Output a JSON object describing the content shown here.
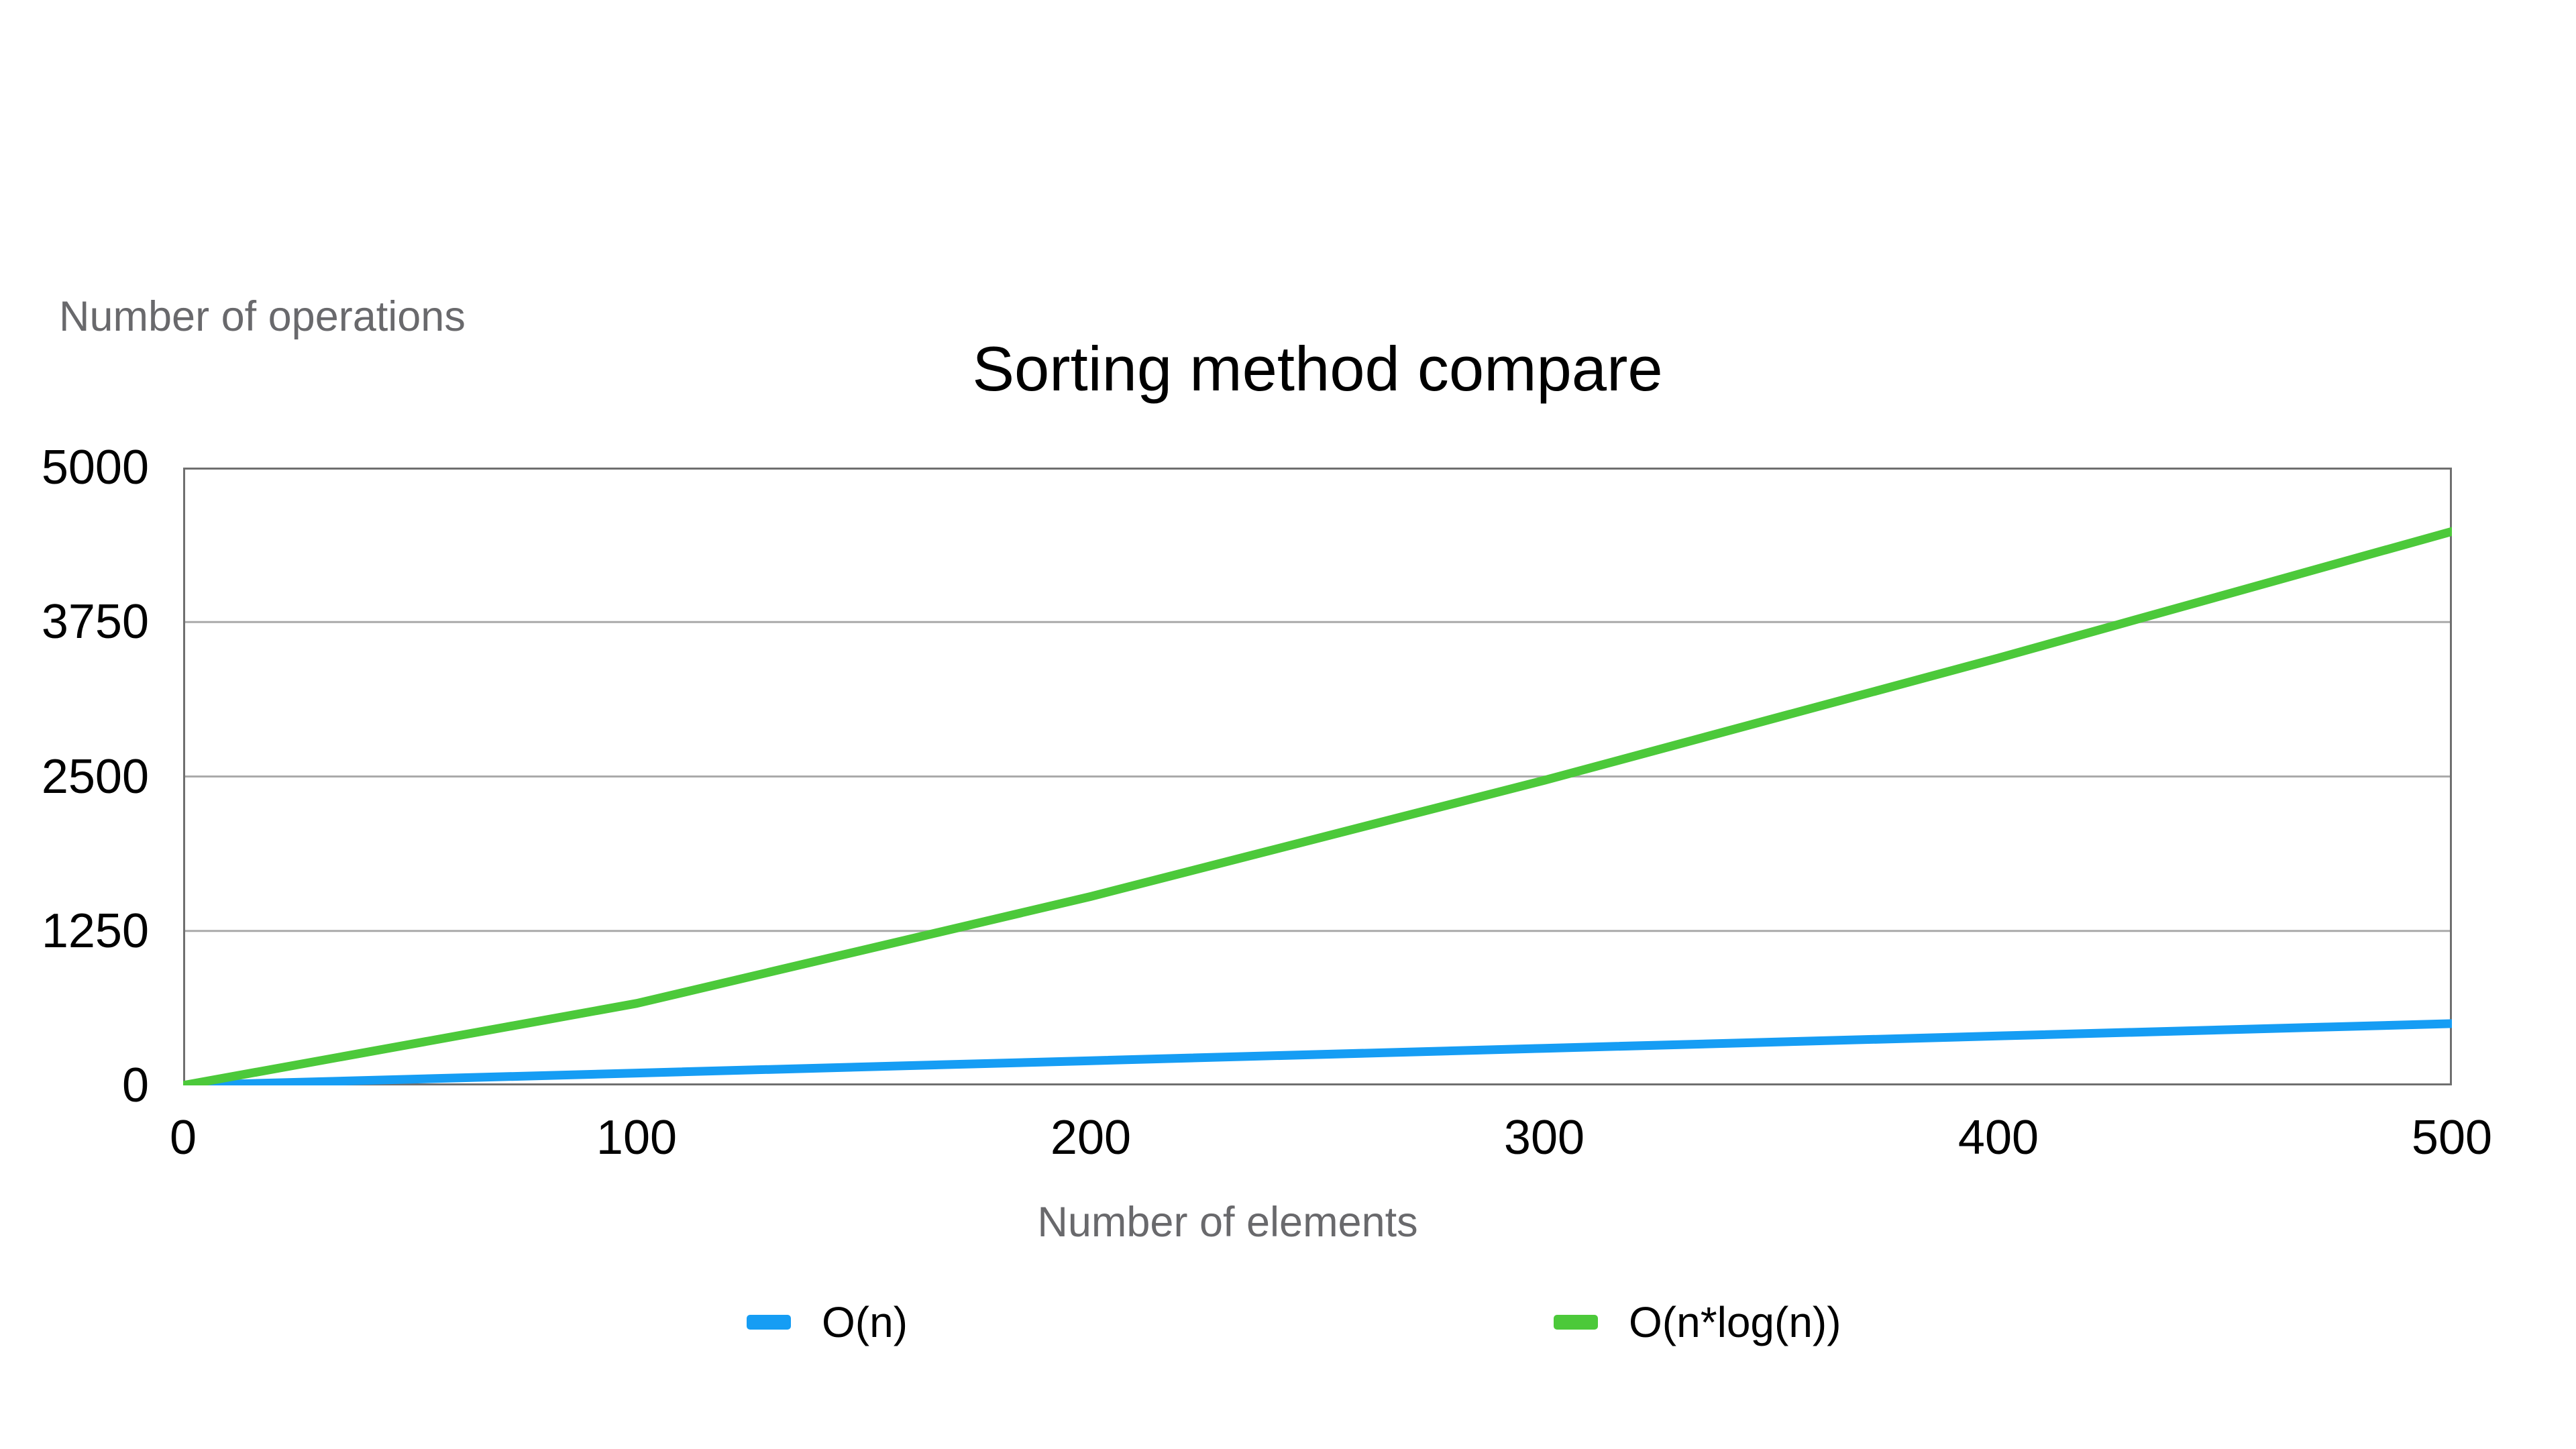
{
  "chart_data": {
    "type": "line",
    "title": "Sorting method compare",
    "xlabel": "Number of elements",
    "ylabel": "Number of operations",
    "xlim": [
      0,
      500
    ],
    "ylim": [
      0,
      5000
    ],
    "xticks": [
      0,
      100,
      200,
      300,
      400,
      500
    ],
    "yticks": [
      0,
      1250,
      2500,
      3750,
      5000
    ],
    "grid": "horizontal-only",
    "legend_position": "bottom",
    "x": [
      0,
      100,
      200,
      300,
      400,
      500
    ],
    "series": [
      {
        "name": "O(n)",
        "color": "#169df4",
        "values": [
          0,
          100,
          200,
          300,
          400,
          500
        ]
      },
      {
        "name": "O(n*log(n))",
        "color": "#4cc93a",
        "values": [
          0,
          664,
          1529,
          2469,
          3458,
          4483
        ]
      }
    ],
    "colors": {
      "gridline": "#aaaaaa",
      "plot_border": "#6f6f6f",
      "title_text": "#000000",
      "tick_text": "#000000",
      "axis_title_text": "#69696c",
      "background": "#ffffff"
    }
  }
}
